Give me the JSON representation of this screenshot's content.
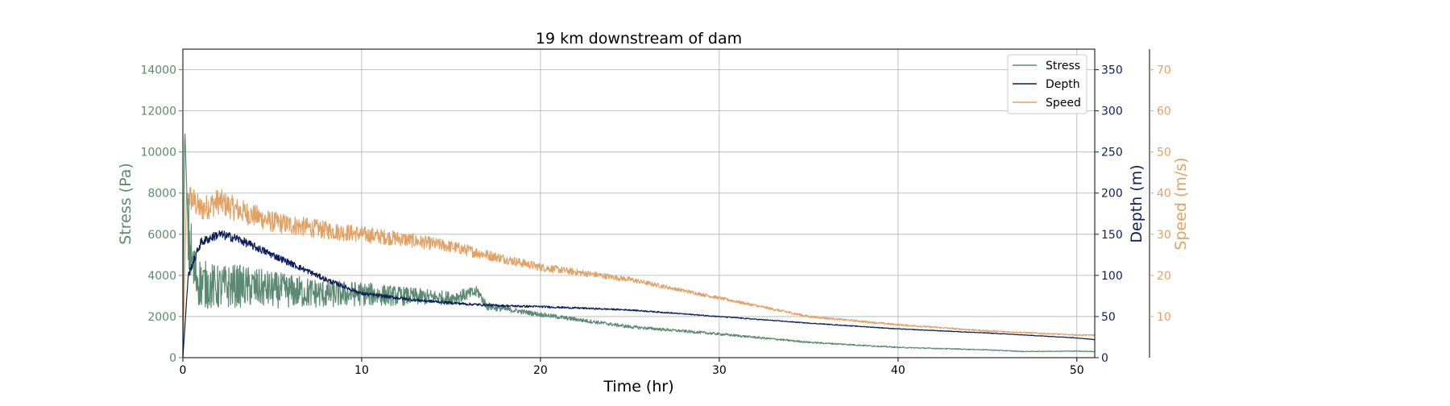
{
  "chart_data": {
    "type": "line",
    "title": "19 km downstream of dam",
    "xlabel": "Time (hr)",
    "xlim": [
      0,
      51
    ],
    "x_ticks": [
      "0",
      "10",
      "20",
      "30",
      "40",
      "50"
    ],
    "grid": true,
    "legend_position": "top-right",
    "axes": {
      "stress": {
        "label": "Stress (Pa)",
        "ylim": [
          0,
          15000
        ],
        "ticks": [
          "0",
          "2000",
          "4000",
          "6000",
          "8000",
          "10000",
          "12000",
          "14000"
        ],
        "color": "#5b8a72"
      },
      "depth": {
        "label": "Depth (m)",
        "ylim": [
          0,
          375
        ],
        "ticks": [
          "0",
          "50",
          "100",
          "150",
          "200",
          "250",
          "300",
          "350"
        ],
        "color": "#0c1f5c"
      },
      "speed": {
        "label": "Speed (m/s)",
        "ylim": [
          0,
          75
        ],
        "ticks": [
          "10",
          "20",
          "30",
          "40",
          "50",
          "60",
          "70"
        ],
        "color": "#e0a265"
      }
    },
    "series": [
      {
        "name": "Stress",
        "axis": "stress",
        "color": "#5b8a72",
        "noise": "high",
        "x": [
          0,
          0.1,
          0.3,
          0.6,
          1,
          2,
          3,
          5,
          8,
          10,
          12,
          15,
          16.5,
          17,
          20,
          25,
          30,
          35,
          40,
          45,
          47,
          50,
          51
        ],
        "values": [
          0,
          11300,
          6000,
          4200,
          3600,
          3400,
          3500,
          3300,
          3100,
          3100,
          3000,
          2900,
          3200,
          2500,
          2100,
          1500,
          1150,
          750,
          500,
          380,
          300,
          320,
          300
        ]
      },
      {
        "name": "Depth",
        "axis": "depth",
        "color": "#0c1f5c",
        "noise": "low",
        "x": [
          0,
          0.3,
          1,
          2,
          3,
          4,
          6,
          8,
          10,
          13,
          16,
          18,
          20,
          25,
          30,
          35,
          40,
          45,
          50,
          51
        ],
        "values": [
          0,
          100,
          140,
          150,
          145,
          135,
          115,
          95,
          78,
          70,
          65,
          63,
          62,
          58,
          50,
          42,
          35,
          30,
          24,
          22
        ]
      },
      {
        "name": "Speed",
        "axis": "speed",
        "color": "#e0a265",
        "noise": "medium",
        "x": [
          0,
          0.2,
          1,
          2,
          3,
          5,
          8,
          10,
          12,
          15,
          17,
          20,
          25,
          30,
          35,
          40,
          45,
          50,
          51
        ],
        "values": [
          0,
          40,
          36,
          38,
          36,
          33,
          31,
          30,
          29,
          27,
          25,
          22,
          19,
          14.5,
          10,
          8,
          6.5,
          5.5,
          5.5
        ]
      }
    ]
  }
}
